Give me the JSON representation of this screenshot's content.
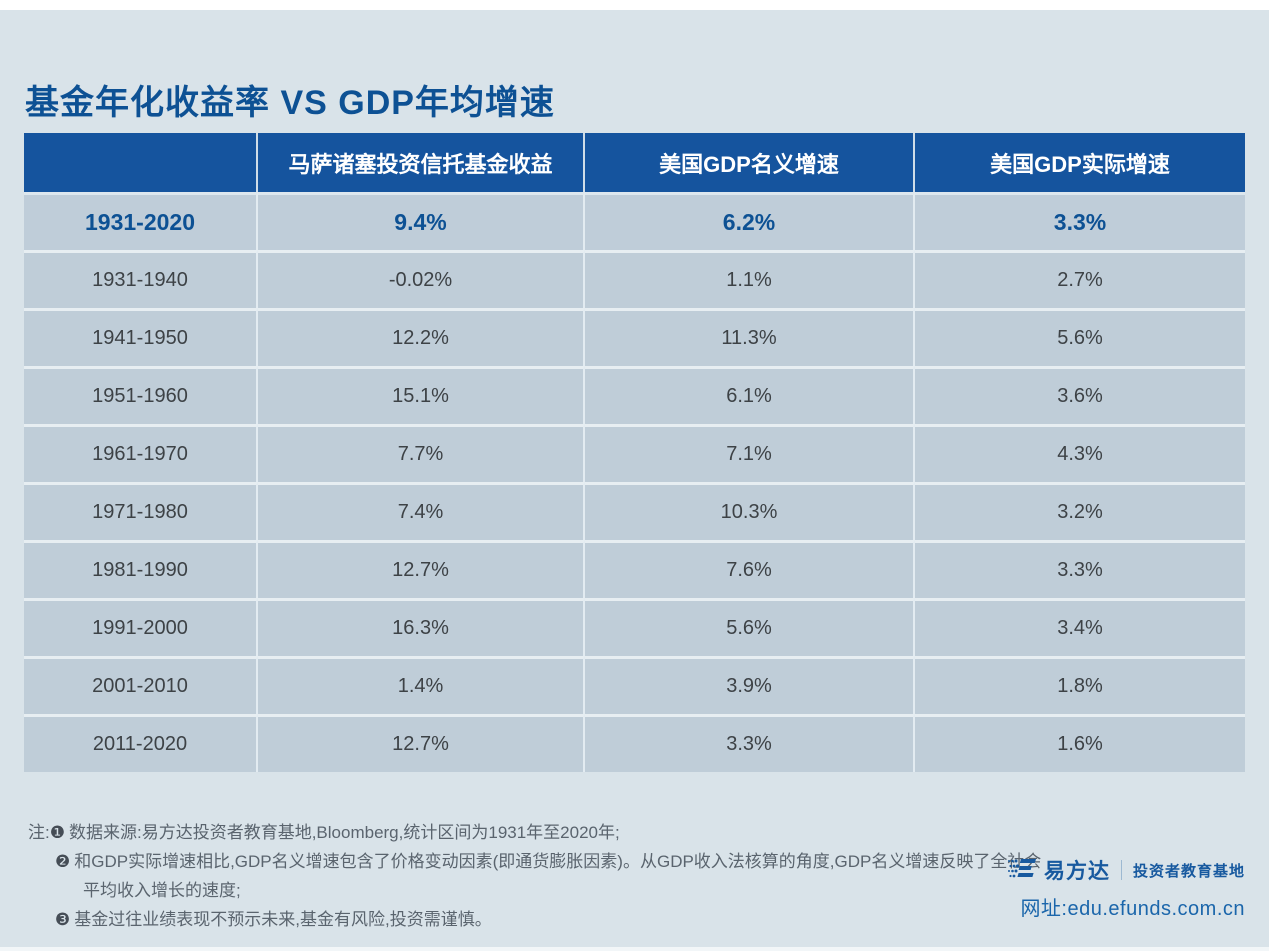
{
  "page": {
    "title": "基金年化收益率 VS GDP年均增速"
  },
  "chart_data": {
    "type": "table",
    "title": "基金年化收益率 VS GDP年均增速",
    "columns": [
      "",
      "马萨诸塞投资信托基金收益",
      "美国GDP名义增速",
      "美国GDP实际增速"
    ],
    "rows": [
      {
        "period": "1931-2020",
        "values": [
          "9.4%",
          "6.2%",
          "3.3%"
        ],
        "highlight": true
      },
      {
        "period": "1931-1940",
        "values": [
          "-0.02%",
          "1.1%",
          "2.7%"
        ],
        "highlight": false
      },
      {
        "period": "1941-1950",
        "values": [
          "12.2%",
          "11.3%",
          "5.6%"
        ],
        "highlight": false
      },
      {
        "period": "1951-1960",
        "values": [
          "15.1%",
          "6.1%",
          "3.6%"
        ],
        "highlight": false
      },
      {
        "period": "1961-1970",
        "values": [
          "7.7%",
          "7.1%",
          "4.3%"
        ],
        "highlight": false
      },
      {
        "period": "1971-1980",
        "values": [
          "7.4%",
          "10.3%",
          "3.2%"
        ],
        "highlight": false
      },
      {
        "period": "1981-1990",
        "values": [
          "12.7%",
          "7.6%",
          "3.3%"
        ],
        "highlight": false
      },
      {
        "period": "1991-2000",
        "values": [
          "16.3%",
          "5.6%",
          "3.4%"
        ],
        "highlight": false
      },
      {
        "period": "2001-2010",
        "values": [
          "1.4%",
          "3.9%",
          "1.8%"
        ],
        "highlight": false
      },
      {
        "period": "2011-2020",
        "values": [
          "12.7%",
          "3.3%",
          "1.6%"
        ],
        "highlight": false
      }
    ]
  },
  "notes": {
    "prefix": "注:",
    "n1_bullet": "❶",
    "n1_text": "数据来源:易方达投资者教育基地,Bloomberg,统计区间为1931年至2020年;",
    "n2_bullet": "❷",
    "n2_text": "和GDP实际增速相比,GDP名义增速包含了价格变动因素(即通货膨胀因素)。从GDP收入法核算的角度,GDP名义增速反映了全社会",
    "n2_cont": "平均收入增长的速度;",
    "n3_bullet": "❸",
    "n3_text": "基金过往业绩表现不预示未来,基金有风险,投资需谨慎。"
  },
  "footer": {
    "brand": "易方达",
    "tagline": "投资者教育基地",
    "url_prefix": "网址:",
    "url": "edu.efunds.com.cn"
  },
  "colors": {
    "page_background": "#d9e3e9",
    "header_blue": "#15549e",
    "row_background": "#bfcdd8",
    "title_blue": "#0d5194",
    "body_text": "#3d4246",
    "note_text": "#5a646e",
    "brand_blue": "#17599f"
  }
}
